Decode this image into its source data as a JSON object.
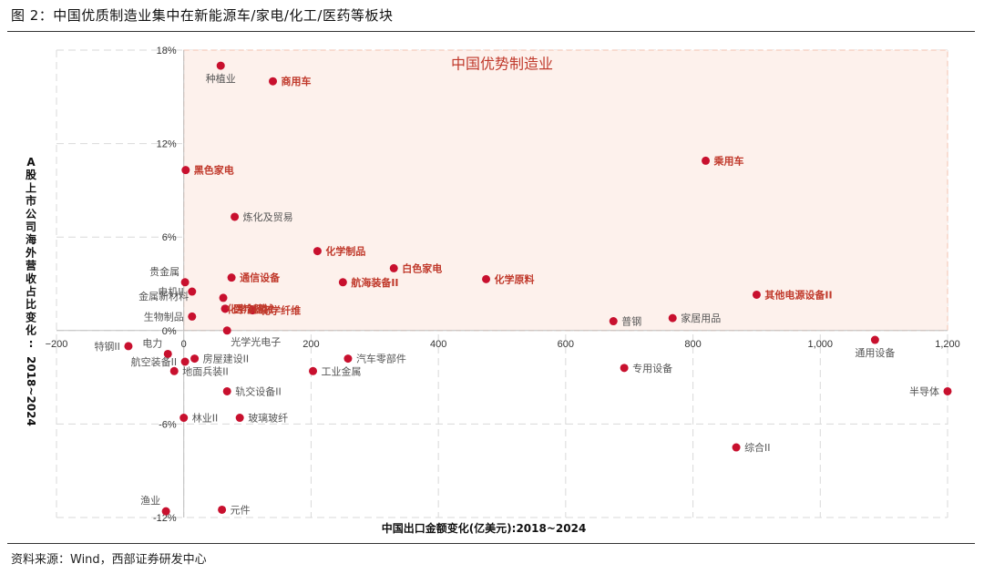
{
  "figure_title": "图 2：中国优质制造业集中在新能源车/家电/化工/医药等板块",
  "source_note": "资料来源：Wind，西部证券研发中心",
  "chart_data": {
    "type": "scatter",
    "xlabel": "中国出口金额变化(亿美元):2018~2024",
    "ylabel": "A股上市公司海外营收占比变化:2018~2024",
    "xlim": [
      -200,
      1200
    ],
    "ylim": [
      -12,
      18
    ],
    "x_ticks": [
      {
        "value": -200,
        "label": "−200"
      },
      {
        "value": 0,
        "label": "0"
      },
      {
        "value": 200,
        "label": "200"
      },
      {
        "value": 400,
        "label": "400"
      },
      {
        "value": 600,
        "label": "600"
      },
      {
        "value": 800,
        "label": "800"
      },
      {
        "value": 1000,
        "label": "1,000"
      },
      {
        "value": 1200,
        "label": "1,200"
      }
    ],
    "y_ticks": [
      {
        "value": -12,
        "label": "-12%"
      },
      {
        "value": -6,
        "label": "-6%"
      },
      {
        "value": 0,
        "label": "0%"
      },
      {
        "value": 6,
        "label": "6%"
      },
      {
        "value": 12,
        "label": "12%"
      },
      {
        "value": 18,
        "label": "18%"
      }
    ],
    "grid": true,
    "highlight_region": {
      "label": "中国优势制造业",
      "x_range": [
        0,
        1200
      ],
      "y_range": [
        0,
        18
      ]
    },
    "colors": {
      "point": "#c8102e",
      "highlight_label": "#c0392b",
      "normal_label": "#555555",
      "region_fill": "#fdf1ec",
      "region_border": "#f3c2b0",
      "grid": "#d9d9d9"
    },
    "points": [
      {
        "name": "种植业",
        "x": 58,
        "y": 17.0,
        "highlight": false,
        "label_pos": "below"
      },
      {
        "name": "商用车",
        "x": 140,
        "y": 16.0,
        "highlight": true,
        "label_pos": "right"
      },
      {
        "name": "乘用车",
        "x": 820,
        "y": 10.9,
        "highlight": true,
        "label_pos": "right"
      },
      {
        "name": "黑色家电",
        "x": 3,
        "y": 10.3,
        "highlight": true,
        "label_pos": "right"
      },
      {
        "name": "炼化及贸易",
        "x": 80,
        "y": 7.3,
        "highlight": false,
        "label_pos": "right"
      },
      {
        "name": "化学制品",
        "x": 210,
        "y": 5.1,
        "highlight": true,
        "label_pos": "right"
      },
      {
        "name": "白色家电",
        "x": 330,
        "y": 4.0,
        "highlight": true,
        "label_pos": "right"
      },
      {
        "name": "化学原料",
        "x": 475,
        "y": 3.3,
        "highlight": true,
        "label_pos": "right"
      },
      {
        "name": "航海装备II",
        "x": 250,
        "y": 3.1,
        "highlight": true,
        "label_pos": "right"
      },
      {
        "name": "其他电源设备II",
        "x": 900,
        "y": 2.3,
        "highlight": true,
        "label_pos": "right"
      },
      {
        "name": "贵金属",
        "x": 2,
        "y": 3.1,
        "highlight": false,
        "label_pos": "left-above"
      },
      {
        "name": "通信设备",
        "x": 75,
        "y": 3.4,
        "highlight": true,
        "label_pos": "right"
      },
      {
        "name": "电机II",
        "x": 13,
        "y": 2.5,
        "highlight": false,
        "label_pos": "left"
      },
      {
        "name": "化学制药",
        "x": 62,
        "y": 2.1,
        "highlight": true,
        "label_pos": "right-below"
      },
      {
        "name": "金属新材料",
        "x": 65,
        "y": 1.4,
        "highlight": false,
        "label_pos": "left-above-far"
      },
      {
        "name": "医疗器械",
        "x": 65,
        "y": 1.4,
        "highlight": true,
        "label_pos": "right"
      },
      {
        "name": "化学纤维",
        "x": 108,
        "y": 1.3,
        "highlight": true,
        "label_pos": "right"
      },
      {
        "name": "生物制品",
        "x": 13,
        "y": 0.9,
        "highlight": false,
        "label_pos": "left"
      },
      {
        "name": "普钢",
        "x": 675,
        "y": 0.6,
        "highlight": false,
        "label_pos": "right"
      },
      {
        "name": "家居用品",
        "x": 768,
        "y": 0.8,
        "highlight": false,
        "label_pos": "right"
      },
      {
        "name": "光学光电子",
        "x": 68,
        "y": 0.0,
        "highlight": false,
        "label_pos": "right-below"
      },
      {
        "name": "通用设备",
        "x": 1086,
        "y": -0.6,
        "highlight": false,
        "label_pos": "below"
      },
      {
        "name": "特钢II",
        "x": -87,
        "y": -1.0,
        "highlight": false,
        "label_pos": "left"
      },
      {
        "name": "电力",
        "x": -25,
        "y": -1.5,
        "highlight": false,
        "label_pos": "left-above"
      },
      {
        "name": "航空装备II",
        "x": 2,
        "y": -2.0,
        "highlight": false,
        "label_pos": "left"
      },
      {
        "name": "房屋建设II",
        "x": 17,
        "y": -1.8,
        "highlight": false,
        "label_pos": "right"
      },
      {
        "name": "汽车零部件",
        "x": 258,
        "y": -1.8,
        "highlight": false,
        "label_pos": "right"
      },
      {
        "name": "地面兵装II",
        "x": -15,
        "y": -2.6,
        "highlight": false,
        "label_pos": "right"
      },
      {
        "name": "工业金属",
        "x": 203,
        "y": -2.6,
        "highlight": false,
        "label_pos": "right"
      },
      {
        "name": "专用设备",
        "x": 692,
        "y": -2.4,
        "highlight": false,
        "label_pos": "right"
      },
      {
        "name": "轨交设备II",
        "x": 68,
        "y": -3.9,
        "highlight": false,
        "label_pos": "right"
      },
      {
        "name": "半导体",
        "x": 1200,
        "y": -3.9,
        "highlight": false,
        "label_pos": "left"
      },
      {
        "name": "林业II",
        "x": 0,
        "y": -5.6,
        "highlight": false,
        "label_pos": "right"
      },
      {
        "name": "玻璃玻纤",
        "x": 88,
        "y": -5.6,
        "highlight": false,
        "label_pos": "right"
      },
      {
        "name": "综合II",
        "x": 868,
        "y": -7.5,
        "highlight": false,
        "label_pos": "right"
      },
      {
        "name": "渔业",
        "x": -28,
        "y": -11.6,
        "highlight": false,
        "label_pos": "left-above"
      },
      {
        "name": "元件",
        "x": 60,
        "y": -11.5,
        "highlight": false,
        "label_pos": "right"
      }
    ]
  }
}
